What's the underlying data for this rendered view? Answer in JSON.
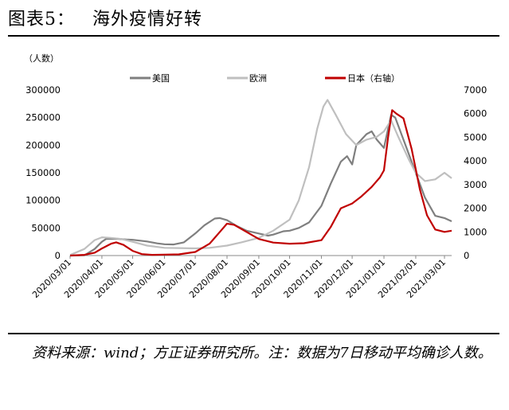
{
  "header": {
    "label": "图表5：",
    "title": "海外疫情好转"
  },
  "footer": {
    "note": "资料来源：wind；方正证券研究所。注：数据为7日移动平均确诊人数。"
  },
  "chart_data": {
    "type": "line",
    "title": "",
    "ylabel_left": "（人数）",
    "ylabel_right": "",
    "ylim_left": [
      0,
      300000
    ],
    "ylim_right": [
      0,
      7000
    ],
    "yticks_left": [
      "0",
      "50000",
      "100000",
      "150000",
      "200000",
      "250000",
      "300000"
    ],
    "yticks_right": [
      "0",
      "1000",
      "2000",
      "3000",
      "4000",
      "5000",
      "6000",
      "7000"
    ],
    "x_tick_labels": [
      "2020/03/01",
      "2020/04/01",
      "2020/05/01",
      "2020/06/01",
      "2020/07/01",
      "2020/08/01",
      "2020/09/01",
      "2020/10/01",
      "2020/11/01",
      "2020/12/01",
      "2021/01/01",
      "2021/02/01",
      "2021/03/01"
    ],
    "legend_position": "top",
    "series": [
      {
        "name": "美国",
        "axis": "left",
        "color": "#7f7f7f",
        "points": [
          [
            "2020-03-01",
            0
          ],
          [
            "2020-03-15",
            500
          ],
          [
            "2020-03-25",
            12000
          ],
          [
            "2020-04-01",
            25000
          ],
          [
            "2020-04-05",
            30000
          ],
          [
            "2020-04-15",
            30500
          ],
          [
            "2020-04-25",
            29000
          ],
          [
            "2020-05-01",
            28500
          ],
          [
            "2020-05-15",
            25500
          ],
          [
            "2020-05-25",
            22000
          ],
          [
            "2020-06-01",
            20500
          ],
          [
            "2020-06-10",
            20000
          ],
          [
            "2020-06-20",
            24000
          ],
          [
            "2020-07-01",
            40000
          ],
          [
            "2020-07-10",
            55000
          ],
          [
            "2020-07-20",
            67000
          ],
          [
            "2020-07-25",
            68000
          ],
          [
            "2020-08-01",
            64000
          ],
          [
            "2020-08-10",
            54000
          ],
          [
            "2020-08-20",
            45000
          ],
          [
            "2020-09-01",
            40000
          ],
          [
            "2020-09-10",
            36000
          ],
          [
            "2020-09-15",
            38000
          ],
          [
            "2020-09-25",
            44000
          ],
          [
            "2020-10-01",
            45000
          ],
          [
            "2020-10-10",
            50000
          ],
          [
            "2020-10-20",
            60000
          ],
          [
            "2020-11-01",
            90000
          ],
          [
            "2020-11-10",
            130000
          ],
          [
            "2020-11-20",
            170000
          ],
          [
            "2020-11-26",
            180000
          ],
          [
            "2020-12-01",
            165000
          ],
          [
            "2020-12-05",
            200000
          ],
          [
            "2020-12-15",
            220000
          ],
          [
            "2020-12-20",
            225000
          ],
          [
            "2020-12-25",
            210000
          ],
          [
            "2021-01-01",
            195000
          ],
          [
            "2021-01-08",
            255000
          ],
          [
            "2021-01-12",
            250000
          ],
          [
            "2021-01-20",
            210000
          ],
          [
            "2021-02-01",
            150000
          ],
          [
            "2021-02-10",
            105000
          ],
          [
            "2021-02-20",
            72000
          ],
          [
            "2021-03-01",
            68000
          ],
          [
            "2021-03-08",
            62000
          ]
        ]
      },
      {
        "name": "欧洲",
        "axis": "left",
        "color": "#bfbfbf",
        "points": [
          [
            "2020-03-01",
            1000
          ],
          [
            "2020-03-15",
            12000
          ],
          [
            "2020-03-25",
            28000
          ],
          [
            "2020-04-01",
            33000
          ],
          [
            "2020-04-10",
            32000
          ],
          [
            "2020-04-20",
            30000
          ],
          [
            "2020-05-01",
            25000
          ],
          [
            "2020-05-15",
            18000
          ],
          [
            "2020-06-01",
            14000
          ],
          [
            "2020-06-15",
            13500
          ],
          [
            "2020-07-01",
            13000
          ],
          [
            "2020-07-15",
            14000
          ],
          [
            "2020-08-01",
            18000
          ],
          [
            "2020-08-15",
            24000
          ],
          [
            "2020-09-01",
            32000
          ],
          [
            "2020-09-15",
            45000
          ],
          [
            "2020-10-01",
            65000
          ],
          [
            "2020-10-10",
            100000
          ],
          [
            "2020-10-20",
            160000
          ],
          [
            "2020-10-28",
            230000
          ],
          [
            "2020-11-03",
            270000
          ],
          [
            "2020-11-07",
            282000
          ],
          [
            "2020-11-15",
            255000
          ],
          [
            "2020-11-25",
            220000
          ],
          [
            "2020-12-05",
            200000
          ],
          [
            "2020-12-15",
            210000
          ],
          [
            "2020-12-25",
            215000
          ],
          [
            "2021-01-01",
            225000
          ],
          [
            "2021-01-08",
            245000
          ],
          [
            "2021-01-15",
            215000
          ],
          [
            "2021-01-25",
            175000
          ],
          [
            "2021-02-01",
            150000
          ],
          [
            "2021-02-10",
            135000
          ],
          [
            "2021-02-20",
            138000
          ],
          [
            "2021-03-01",
            150000
          ],
          [
            "2021-03-08",
            140000
          ]
        ]
      },
      {
        "name": "日本（右轴）",
        "axis": "right",
        "color": "#c00000",
        "points": [
          [
            "2020-03-01",
            0
          ],
          [
            "2020-03-15",
            30
          ],
          [
            "2020-03-25",
            120
          ],
          [
            "2020-04-01",
            300
          ],
          [
            "2020-04-10",
            500
          ],
          [
            "2020-04-15",
            560
          ],
          [
            "2020-04-22",
            450
          ],
          [
            "2020-05-01",
            200
          ],
          [
            "2020-05-10",
            60
          ],
          [
            "2020-05-20",
            30
          ],
          [
            "2020-06-01",
            40
          ],
          [
            "2020-06-15",
            50
          ],
          [
            "2020-07-01",
            150
          ],
          [
            "2020-07-15",
            500
          ],
          [
            "2020-07-25",
            1000
          ],
          [
            "2020-08-01",
            1350
          ],
          [
            "2020-08-08",
            1300
          ],
          [
            "2020-08-20",
            1000
          ],
          [
            "2020-09-01",
            700
          ],
          [
            "2020-09-15",
            550
          ],
          [
            "2020-10-01",
            500
          ],
          [
            "2020-10-15",
            520
          ],
          [
            "2020-11-01",
            650
          ],
          [
            "2020-11-10",
            1200
          ],
          [
            "2020-11-20",
            2000
          ],
          [
            "2020-12-01",
            2200
          ],
          [
            "2020-12-10",
            2500
          ],
          [
            "2020-12-20",
            2900
          ],
          [
            "2020-12-28",
            3300
          ],
          [
            "2021-01-01",
            3600
          ],
          [
            "2021-01-05",
            5000
          ],
          [
            "2021-01-09",
            6150
          ],
          [
            "2021-01-13",
            6000
          ],
          [
            "2021-01-20",
            5800
          ],
          [
            "2021-01-28",
            4500
          ],
          [
            "2021-02-05",
            2800
          ],
          [
            "2021-02-12",
            1700
          ],
          [
            "2021-02-20",
            1100
          ],
          [
            "2021-03-01",
            1000
          ],
          [
            "2021-03-08",
            1050
          ]
        ]
      }
    ]
  }
}
